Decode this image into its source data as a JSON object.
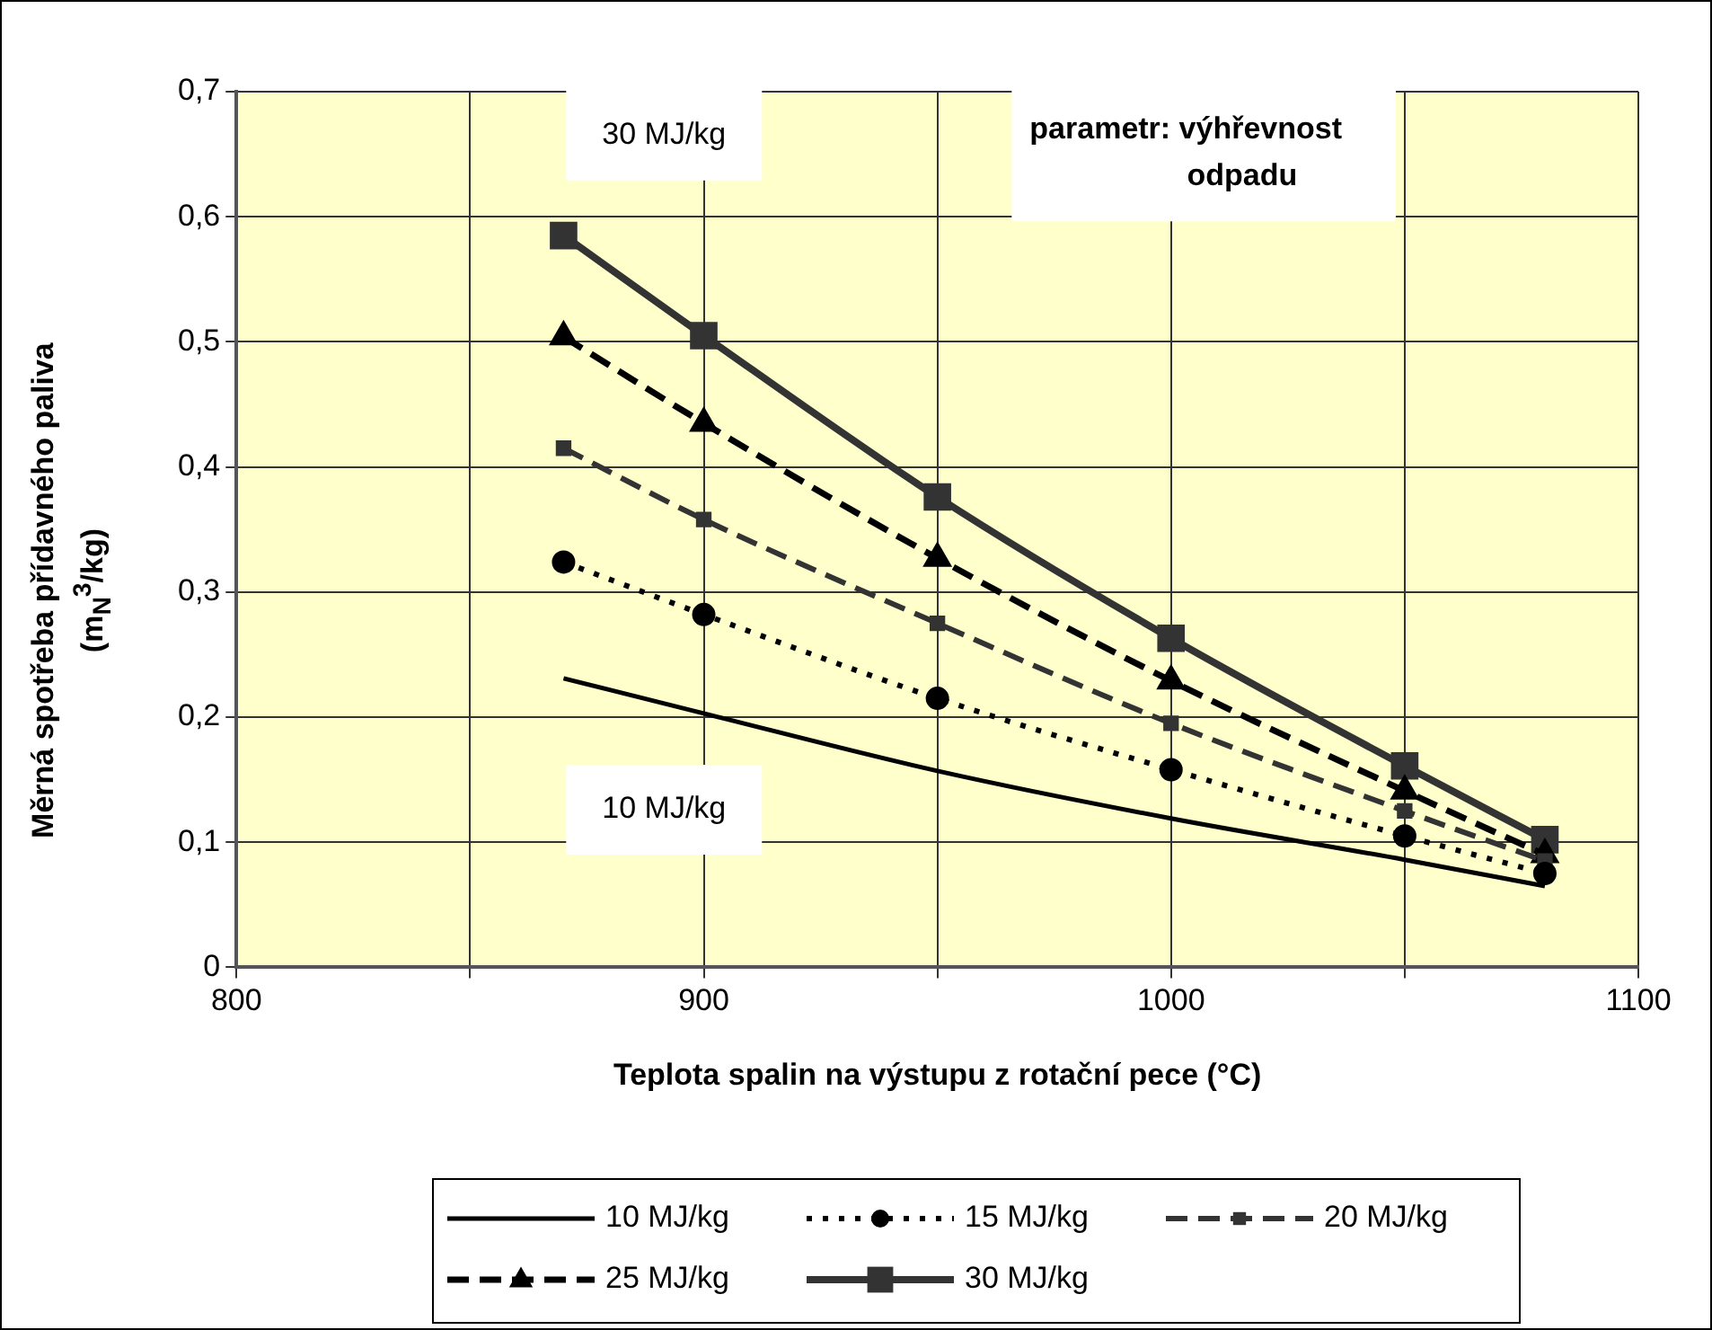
{
  "chart_data": {
    "type": "line",
    "xlabel": "Teplota spalin na výstupu z rotační pece (°C)",
    "ylabel": "Měrná spotřeba přídavného paliva (m$_{N}$$^{3}$/kg)",
    "x": [
      870,
      900,
      950,
      1000,
      1050,
      1080
    ],
    "series": [
      {
        "name": "10 MJ/kg",
        "color": "#000000",
        "marker": "none",
        "line_style": "solid",
        "values": [
          0.231,
          0.203,
          0.157,
          0.119,
          0.086,
          0.065
        ]
      },
      {
        "name": "15 MJ/kg",
        "color": "#000000",
        "marker": "circle",
        "line_style": "dotted",
        "values": [
          0.324,
          0.282,
          0.215,
          0.158,
          0.105,
          0.075
        ]
      },
      {
        "name": "20 MJ/kg",
        "color": "#333333",
        "marker": "square",
        "line_style": "dashed",
        "values": [
          0.415,
          0.358,
          0.275,
          0.195,
          0.125,
          0.085
        ]
      },
      {
        "name": "25 MJ/kg",
        "color": "#000000",
        "marker": "triangle",
        "line_style": "dashed",
        "values": [
          0.504,
          0.435,
          0.327,
          0.229,
          0.141,
          0.09
        ]
      },
      {
        "name": "30 MJ/kg",
        "color": "#333333",
        "marker": "square",
        "line_style": "solid",
        "values": [
          0.585,
          0.505,
          0.376,
          0.263,
          0.161,
          0.102
        ]
      }
    ],
    "xlim": [
      800,
      1100
    ],
    "xticks": [
      800,
      {
        "value": 850,
        "label": null
      },
      900,
      {
        "value": 950,
        "label": null
      },
      1000,
      {
        "value": 1050,
        "label": null
      },
      1100
    ],
    "ylim": [
      0,
      0.7
    ],
    "yticks": [
      {
        "value": 0,
        "label": "0"
      },
      {
        "value": 0.1,
        "label": "0,1"
      },
      {
        "value": 0.2,
        "label": "0,2"
      },
      {
        "value": 0.3,
        "label": "0,3"
      },
      {
        "value": 0.4,
        "label": "0,4"
      },
      {
        "value": 0.5,
        "label": "0,5"
      },
      {
        "value": 0.6,
        "label": "0,6"
      },
      {
        "value": 0.7,
        "label": "0,7"
      }
    ],
    "grid": true,
    "legend": "bottom",
    "annotations": [
      "30 MJ/kg",
      "10 MJ/kg",
      "parametr: výhřevnost\nodpadu"
    ]
  }
}
